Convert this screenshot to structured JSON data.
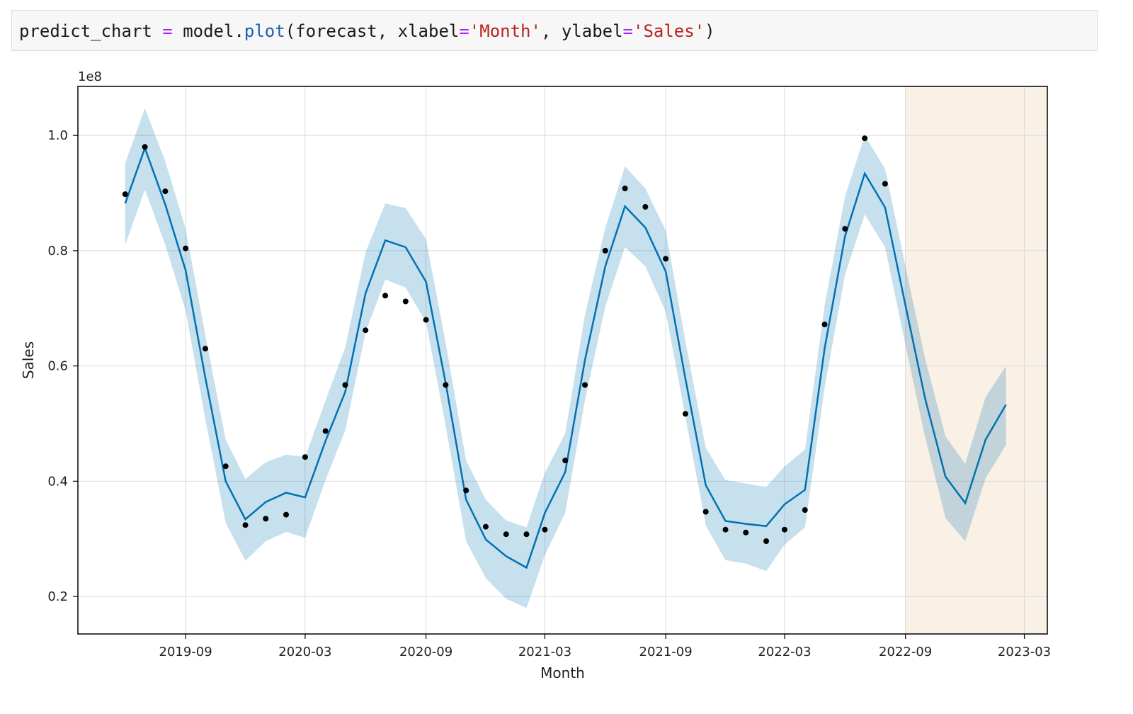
{
  "code_cell": {
    "tokens": [
      {
        "text": "predict_chart ",
        "kind": "plain"
      },
      {
        "text": "=",
        "kind": "op"
      },
      {
        "text": " model.",
        "kind": "plain"
      },
      {
        "text": "plot",
        "kind": "fn"
      },
      {
        "text": "(forecast, xlabel",
        "kind": "plain"
      },
      {
        "text": "=",
        "kind": "op"
      },
      {
        "text": "'Month'",
        "kind": "str"
      },
      {
        "text": ", ylabel",
        "kind": "plain"
      },
      {
        "text": "=",
        "kind": "op"
      },
      {
        "text": "'Sales'",
        "kind": "str"
      },
      {
        "text": ")",
        "kind": "plain"
      }
    ]
  },
  "chart_data": {
    "type": "line",
    "xlabel": "Month",
    "ylabel": "Sales",
    "y_offset_label": "1e8",
    "y_scale": 100000000,
    "xlim": [
      "2019-03-21",
      "2023-04-05"
    ],
    "ylim": [
      0.135,
      1.085
    ],
    "x_ticks": [
      "2019-09",
      "2020-03",
      "2020-09",
      "2021-03",
      "2021-09",
      "2022-03",
      "2022-09",
      "2023-03"
    ],
    "y_ticks": [
      0.2,
      0.4,
      0.6,
      0.8,
      1.0
    ],
    "y_tick_labels": [
      "0.2",
      "0.4",
      "0.6",
      "0.8",
      "1.0"
    ],
    "grid": true,
    "forecast_region_start": "2022-09-01",
    "colors": {
      "forecast_line": "#0072b2",
      "uncertainty_band": "#0072b2",
      "observed_points": "#000000",
      "forecast_region": "#f5e6d6"
    },
    "series": [
      {
        "name": "observed",
        "kind": "points",
        "x": [
          "2019-06",
          "2019-07",
          "2019-08",
          "2019-09",
          "2019-10",
          "2019-11",
          "2019-12",
          "2020-01",
          "2020-02",
          "2020-03",
          "2020-04",
          "2020-05",
          "2020-06",
          "2020-07",
          "2020-08",
          "2020-09",
          "2020-10",
          "2020-11",
          "2020-12",
          "2021-01",
          "2021-02",
          "2021-03",
          "2021-04",
          "2021-05",
          "2021-06",
          "2021-07",
          "2021-08",
          "2021-09",
          "2021-10",
          "2021-11",
          "2021-12",
          "2022-01",
          "2022-02",
          "2022-03",
          "2022-04",
          "2022-05",
          "2022-06",
          "2022-07",
          "2022-08"
        ],
        "y": [
          0.898,
          0.98,
          0.903,
          0.804,
          0.63,
          0.426,
          0.324,
          0.335,
          0.342,
          0.442,
          0.487,
          0.567,
          0.662,
          0.722,
          0.712,
          0.68,
          0.567,
          0.384,
          0.321,
          0.308,
          0.308,
          0.316,
          0.436,
          0.567,
          0.8,
          0.908,
          0.876,
          0.786,
          0.517,
          0.347,
          0.316,
          0.311,
          0.296,
          0.316,
          0.35,
          0.672,
          0.838,
          0.995,
          0.916
        ]
      },
      {
        "name": "forecast",
        "kind": "line",
        "x": [
          "2019-06",
          "2019-07",
          "2019-08",
          "2019-09",
          "2019-10",
          "2019-11",
          "2019-12",
          "2020-01",
          "2020-02",
          "2020-03",
          "2020-04",
          "2020-05",
          "2020-06",
          "2020-07",
          "2020-08",
          "2020-09",
          "2020-10",
          "2020-11",
          "2020-12",
          "2021-01",
          "2021-02",
          "2021-03",
          "2021-04",
          "2021-05",
          "2021-06",
          "2021-07",
          "2021-08",
          "2021-09",
          "2021-10",
          "2021-11",
          "2021-12",
          "2022-01",
          "2022-02",
          "2022-03",
          "2022-04",
          "2022-05",
          "2022-06",
          "2022-07",
          "2022-08",
          "2022-09",
          "2022-10",
          "2022-11",
          "2022-12",
          "2023-01",
          "2023-02"
        ],
        "y": [
          0.882,
          0.978,
          0.88,
          0.766,
          0.58,
          0.4,
          0.334,
          0.364,
          0.38,
          0.372,
          0.47,
          0.555,
          0.726,
          0.818,
          0.806,
          0.746,
          0.57,
          0.368,
          0.299,
          0.27,
          0.25,
          0.345,
          0.416,
          0.61,
          0.773,
          0.877,
          0.84,
          0.764,
          0.578,
          0.393,
          0.331,
          0.326,
          0.322,
          0.36,
          0.385,
          0.631,
          0.825,
          0.934,
          0.875,
          0.705,
          0.543,
          0.408,
          0.362,
          0.472,
          0.533
        ]
      },
      {
        "name": "forecast_upper",
        "kind": "band_upper",
        "x": [
          "2019-06",
          "2019-07",
          "2019-08",
          "2019-09",
          "2019-10",
          "2019-11",
          "2019-12",
          "2020-01",
          "2020-02",
          "2020-03",
          "2020-04",
          "2020-05",
          "2020-06",
          "2020-07",
          "2020-08",
          "2020-09",
          "2020-10",
          "2020-11",
          "2020-12",
          "2021-01",
          "2021-02",
          "2021-03",
          "2021-04",
          "2021-05",
          "2021-06",
          "2021-07",
          "2021-08",
          "2021-09",
          "2021-10",
          "2021-11",
          "2021-12",
          "2022-01",
          "2022-02",
          "2022-03",
          "2022-04",
          "2022-05",
          "2022-06",
          "2022-07",
          "2022-08",
          "2022-09",
          "2022-10",
          "2022-11",
          "2022-12",
          "2023-01",
          "2023-02"
        ],
        "y": [
          0.952,
          1.047,
          0.955,
          0.838,
          0.654,
          0.472,
          0.404,
          0.433,
          0.446,
          0.442,
          0.54,
          0.632,
          0.797,
          0.882,
          0.874,
          0.82,
          0.64,
          0.436,
          0.368,
          0.332,
          0.32,
          0.415,
          0.483,
          0.688,
          0.84,
          0.946,
          0.908,
          0.835,
          0.643,
          0.458,
          0.402,
          0.396,
          0.39,
          0.426,
          0.455,
          0.706,
          0.894,
          1.0,
          0.942,
          0.773,
          0.612,
          0.478,
          0.43,
          0.546,
          0.6
        ]
      },
      {
        "name": "forecast_lower",
        "kind": "band_lower",
        "x": [
          "2019-06",
          "2019-07",
          "2019-08",
          "2019-09",
          "2019-10",
          "2019-11",
          "2019-12",
          "2020-01",
          "2020-02",
          "2020-03",
          "2020-04",
          "2020-05",
          "2020-06",
          "2020-07",
          "2020-08",
          "2020-09",
          "2020-10",
          "2020-11",
          "2020-12",
          "2021-01",
          "2021-02",
          "2021-03",
          "2021-04",
          "2021-05",
          "2021-06",
          "2021-07",
          "2021-08",
          "2021-09",
          "2021-10",
          "2021-11",
          "2021-12",
          "2022-01",
          "2022-02",
          "2022-03",
          "2022-04",
          "2022-05",
          "2022-06",
          "2022-07",
          "2022-08",
          "2022-09",
          "2022-10",
          "2022-11",
          "2022-12",
          "2023-01",
          "2023-02"
        ],
        "y": [
          0.81,
          0.906,
          0.81,
          0.696,
          0.508,
          0.328,
          0.262,
          0.296,
          0.312,
          0.302,
          0.402,
          0.488,
          0.658,
          0.75,
          0.736,
          0.676,
          0.496,
          0.296,
          0.232,
          0.196,
          0.18,
          0.272,
          0.345,
          0.54,
          0.703,
          0.806,
          0.773,
          0.694,
          0.512,
          0.323,
          0.263,
          0.257,
          0.244,
          0.29,
          0.32,
          0.563,
          0.758,
          0.863,
          0.806,
          0.636,
          0.476,
          0.336,
          0.296,
          0.405,
          0.463
        ]
      }
    ]
  }
}
